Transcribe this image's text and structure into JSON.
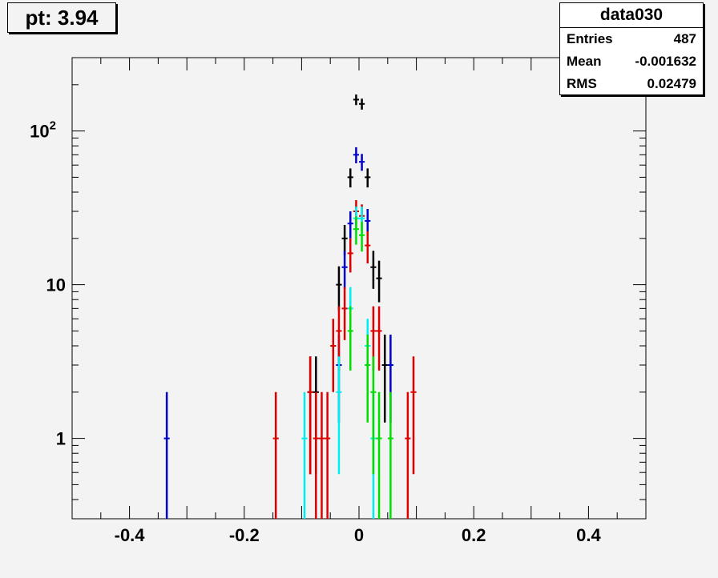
{
  "title": "pt: 3.94",
  "stats": {
    "name": "data030",
    "rows": [
      {
        "label": "Entries",
        "value": "487"
      },
      {
        "label": "Mean",
        "value": "-0.001632"
      },
      {
        "label": "RMS",
        "value": "0.02479"
      }
    ]
  },
  "colors": {
    "black": "#000000",
    "blue": "#0000cc",
    "red": "#dd0000",
    "cyan": "#00eeee",
    "green": "#00dd00"
  },
  "chart_data": {
    "type": "scatter",
    "ylog": true,
    "xlim": [
      -0.5,
      0.5
    ],
    "ylim": [
      0.3,
      300
    ],
    "xticks": [
      {
        "value": -0.4,
        "label": "-0.4"
      },
      {
        "value": -0.2,
        "label": "-0.2"
      },
      {
        "value": 0,
        "label": "0"
      },
      {
        "value": 0.2,
        "label": "0.2"
      },
      {
        "value": 0.4,
        "label": "0.4"
      }
    ],
    "yticks": [
      {
        "value": 1,
        "label": "1"
      },
      {
        "value": 10,
        "label": "10"
      },
      {
        "value": 100,
        "label": "10",
        "sup": "2"
      }
    ],
    "series": [
      {
        "color": "#000000",
        "points": [
          [
            -0.085,
            2
          ],
          [
            -0.075,
            2
          ],
          [
            -0.035,
            10
          ],
          [
            -0.025,
            20
          ],
          [
            -0.015,
            50
          ],
          [
            -0.005,
            160
          ],
          [
            0.005,
            150
          ],
          [
            0.015,
            50
          ],
          [
            0.025,
            13
          ],
          [
            0.035,
            11
          ],
          [
            0.045,
            3
          ]
        ]
      },
      {
        "color": "#0000cc",
        "points": [
          [
            -0.335,
            1
          ],
          [
            -0.035,
            3
          ],
          [
            -0.025,
            13
          ],
          [
            -0.015,
            25
          ],
          [
            -0.005,
            70
          ],
          [
            0.005,
            63
          ],
          [
            0.015,
            26
          ],
          [
            0.055,
            3
          ]
        ]
      },
      {
        "color": "#dd0000",
        "points": [
          [
            -0.145,
            1
          ],
          [
            -0.085,
            2
          ],
          [
            -0.075,
            1
          ],
          [
            -0.065,
            1
          ],
          [
            -0.055,
            1
          ],
          [
            -0.045,
            4
          ],
          [
            -0.035,
            5
          ],
          [
            -0.025,
            7
          ],
          [
            -0.015,
            16
          ],
          [
            -0.005,
            30
          ],
          [
            0.005,
            28
          ],
          [
            0.015,
            18
          ],
          [
            0.025,
            5
          ],
          [
            0.035,
            5
          ],
          [
            0.085,
            1
          ],
          [
            0.095,
            2
          ]
        ]
      },
      {
        "color": "#00eeee",
        "points": [
          [
            -0.095,
            1
          ],
          [
            -0.035,
            2
          ],
          [
            -0.015,
            7
          ],
          [
            -0.005,
            27
          ],
          [
            0.005,
            27
          ],
          [
            0.015,
            4
          ],
          [
            0.025,
            1
          ]
        ]
      },
      {
        "color": "#00dd00",
        "points": [
          [
            -0.015,
            5
          ],
          [
            -0.005,
            23
          ],
          [
            0.005,
            21
          ],
          [
            0.015,
            3
          ],
          [
            0.025,
            2
          ],
          [
            0.035,
            1
          ],
          [
            0.055,
            1
          ]
        ]
      }
    ]
  }
}
